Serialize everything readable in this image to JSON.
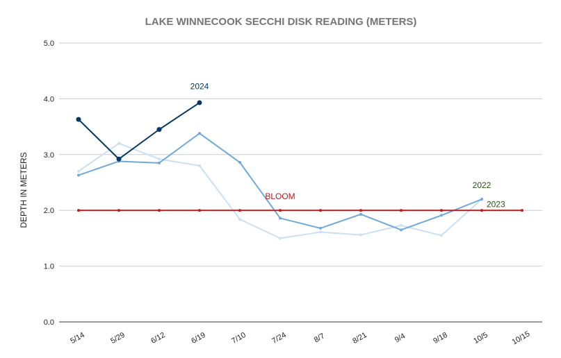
{
  "chart_data": {
    "type": "line",
    "title": "LAKE WINNECOOK SECCHI DISK READING (METERS)",
    "ylabel": "DEPTH IN METERS",
    "xlabel": "",
    "ylim": [
      0,
      5
    ],
    "yticks": [
      "0.0",
      "1.0",
      "2.0",
      "3.0",
      "4.0",
      "5.0"
    ],
    "ytick_values": [
      0,
      1,
      2,
      3,
      4,
      5
    ],
    "categories": [
      "5/14",
      "5/29",
      "6/12",
      "6/19",
      "7/10",
      "7/24",
      "8/7",
      "8/21",
      "9/4",
      "9/18",
      "10/5",
      "10/15"
    ],
    "grid": "horizontal",
    "legend": "none",
    "series": [
      {
        "key": "s2023",
        "color": "#c9e1f3",
        "marker": "small",
        "values": [
          2.7,
          3.2,
          2.92,
          2.8,
          1.84,
          1.5,
          1.61,
          1.56,
          1.73,
          1.55,
          2.2,
          null
        ]
      },
      {
        "key": "s2022",
        "color": "#6fa8dc",
        "marker": "small",
        "values": [
          2.63,
          2.88,
          2.85,
          3.38,
          2.86,
          1.86,
          1.68,
          1.93,
          1.65,
          1.91,
          2.2,
          null
        ]
      },
      {
        "key": "bloom",
        "color": "#b71c1c",
        "marker": "small",
        "values": [
          2.0,
          2.0,
          2.0,
          2.0,
          2.0,
          2.0,
          2.0,
          2.0,
          2.0,
          2.0,
          2.0,
          2.0
        ]
      },
      {
        "key": "s2024",
        "color": "#073763",
        "marker": "large",
        "values": [
          3.63,
          2.92,
          3.45,
          3.93,
          null,
          null,
          null,
          null,
          null,
          null,
          null,
          null
        ]
      }
    ],
    "annotations": [
      {
        "text": "2024",
        "at": [
          3,
          4.22
        ],
        "color": "#073763"
      },
      {
        "text": "BLOOM",
        "at": [
          5,
          2.25
        ],
        "color": "#b71c1c"
      },
      {
        "text": "2022",
        "at": [
          10,
          2.45
        ],
        "color": "#274e13"
      },
      {
        "text": "2023",
        "at": [
          10.35,
          2.11
        ],
        "color": "#274e13"
      }
    ]
  }
}
